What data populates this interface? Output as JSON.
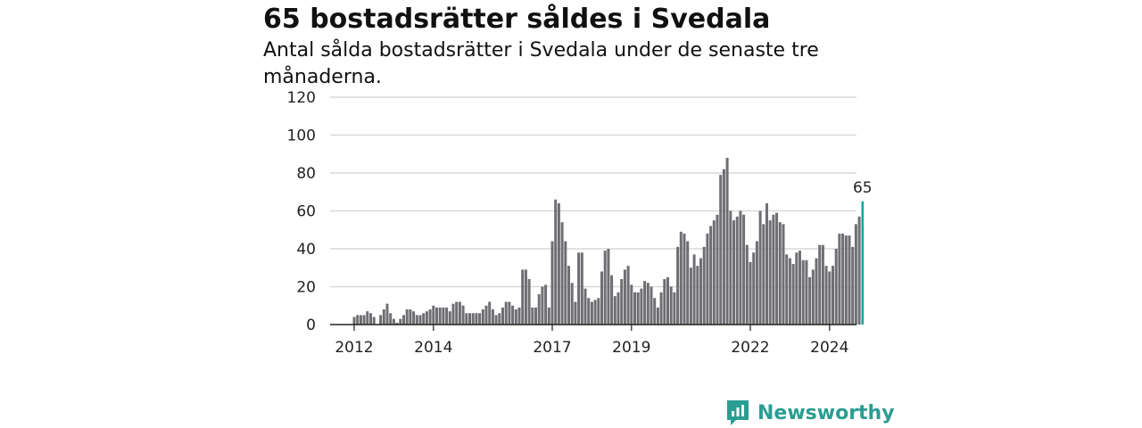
{
  "title": "65 bostadsrätter såldes i Svedala",
  "subtitle": "Antal sålda bostadsrätter i Svedala under de senaste tre månaderna.",
  "brand": {
    "name": "Newsworthy",
    "icon": "newsworthy-logo-icon"
  },
  "colors": {
    "bar": "#6e6e73",
    "highlight": "#1aa39a",
    "grid": "#d9d9d9",
    "axis": "#222222"
  },
  "chart_data": {
    "type": "bar",
    "x_start": "2012-01",
    "ylim": [
      0,
      120
    ],
    "yticks": [
      0,
      20,
      40,
      60,
      80,
      100,
      120
    ],
    "xticks": [
      "2012",
      "2014",
      "2017",
      "2019",
      "2022",
      "2024"
    ],
    "grid": true,
    "highlight_label": "65",
    "values": [
      4,
      5,
      5,
      5,
      7,
      6,
      4,
      0,
      5,
      8,
      11,
      6,
      3,
      1,
      3,
      5,
      8,
      8,
      7,
      5,
      5,
      6,
      7,
      8,
      10,
      9,
      9,
      9,
      9,
      7,
      11,
      12,
      12,
      10,
      6,
      6,
      6,
      6,
      6,
      8,
      10,
      12,
      8,
      5,
      6,
      9,
      12,
      12,
      10,
      8,
      9,
      29,
      29,
      24,
      9,
      9,
      16,
      20,
      21,
      9,
      44,
      66,
      64,
      54,
      44,
      31,
      22,
      12,
      38,
      38,
      19,
      14,
      12,
      13,
      14,
      28,
      39,
      40,
      26,
      15,
      17,
      24,
      29,
      31,
      21,
      17,
      17,
      19,
      23,
      22,
      20,
      14,
      9,
      17,
      24,
      25,
      20,
      17,
      41,
      49,
      48,
      44,
      30,
      37,
      31,
      35,
      41,
      48,
      52,
      55,
      58,
      79,
      82,
      88,
      60,
      55,
      57,
      60,
      58,
      42,
      33,
      38,
      44,
      60,
      53,
      64,
      55,
      58,
      59,
      54,
      53,
      37,
      35,
      32,
      38,
      39,
      34,
      34,
      25,
      29,
      35,
      42,
      42,
      31,
      28,
      31,
      40,
      48,
      48,
      47,
      47,
      41,
      53,
      57,
      65
    ]
  }
}
